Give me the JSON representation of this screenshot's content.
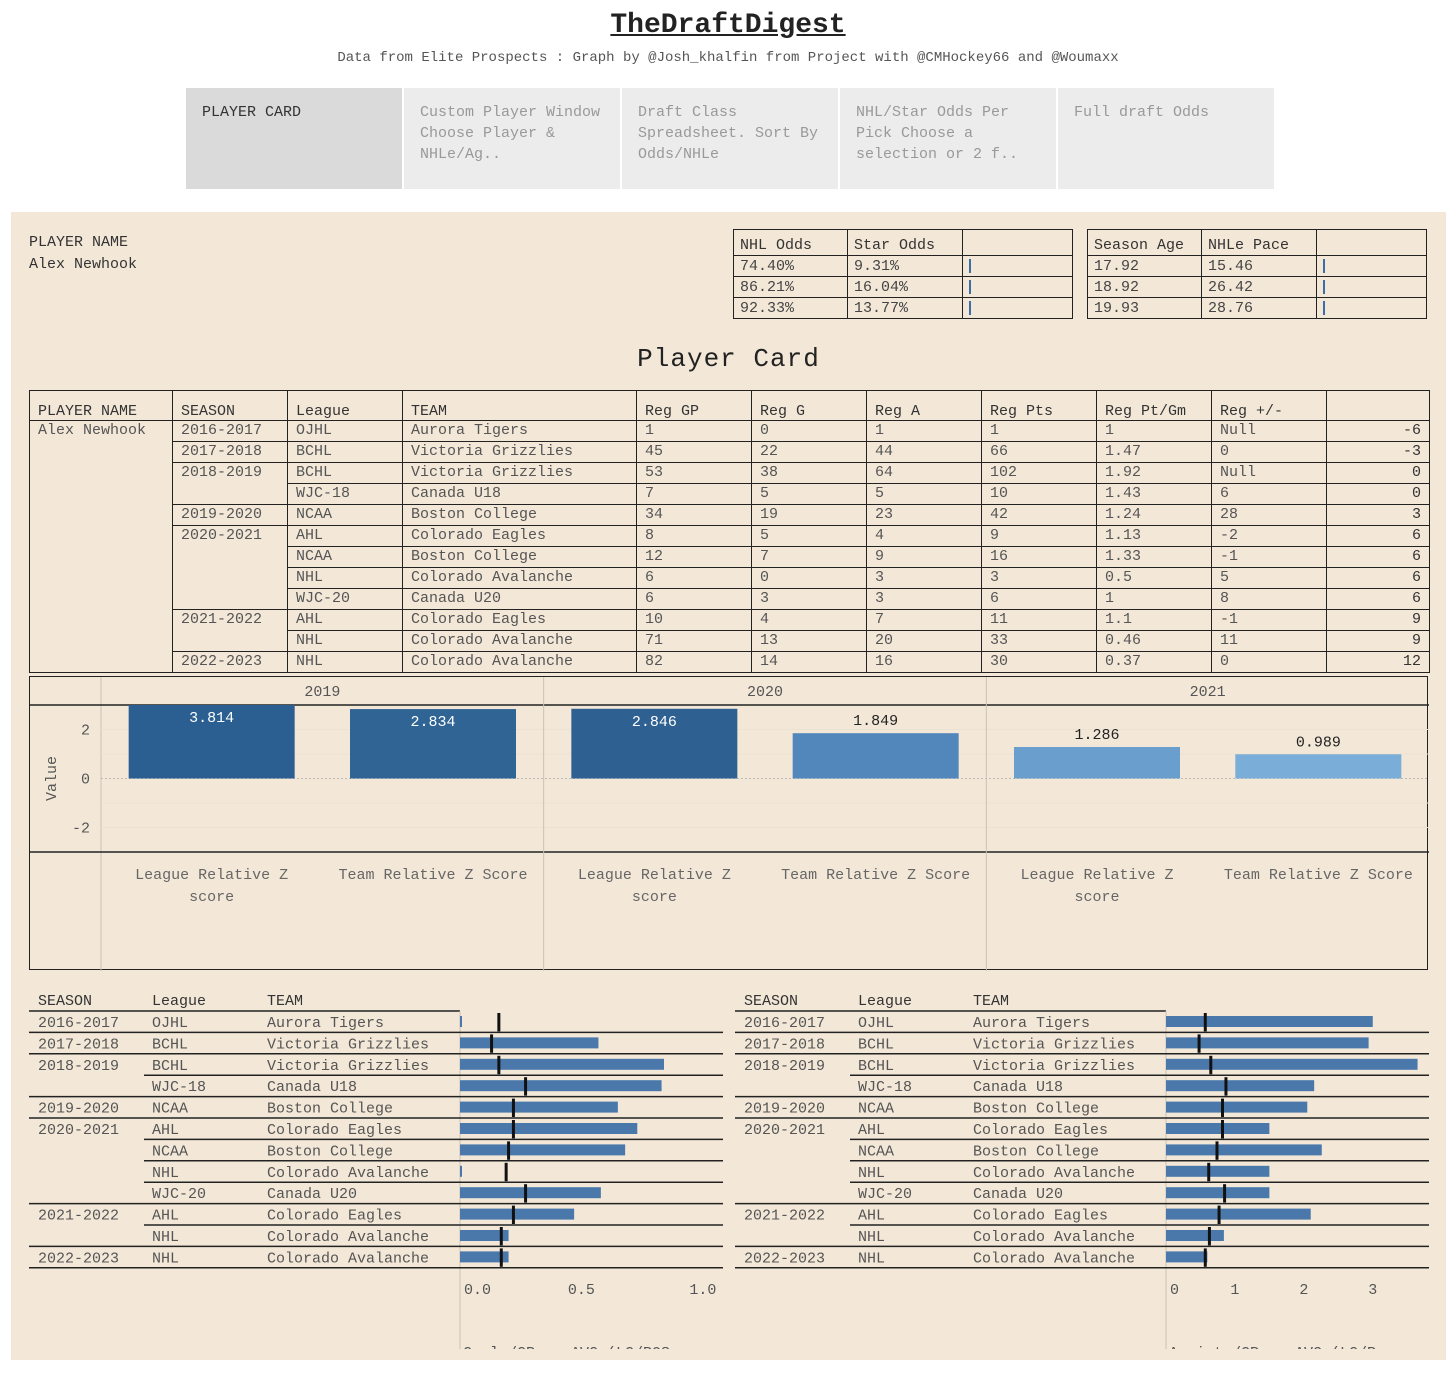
{
  "header": {
    "title": "TheDraftDigest",
    "subtitle": "Data from Elite Prospects : Graph by @Josh_khalfin from Project with @CMHockey66 and @Woumaxx"
  },
  "tabs": [
    {
      "label": "PLAYER CARD",
      "active": true
    },
    {
      "label": "Custom Player Window Choose Player & NHLe/Ag..",
      "active": false
    },
    {
      "label": "Draft Class Spreadsheet. Sort By Odds/NHLe",
      "active": false
    },
    {
      "label": "NHL/Star Odds Per Pick Choose a selection or 2 f..",
      "active": false
    },
    {
      "label": "Full draft Odds",
      "active": false
    }
  ],
  "player": {
    "label": "PLAYER NAME",
    "name": "Alex Newhook"
  },
  "odds_table": {
    "headers": [
      "NHL Odds",
      "Star Odds",
      ""
    ],
    "rows": [
      [
        "74.40%",
        "9.31%"
      ],
      [
        "86.21%",
        "16.04%"
      ],
      [
        "92.33%",
        "13.77%"
      ]
    ]
  },
  "age_table": {
    "headers": [
      "Season Age",
      "NHLe Pace",
      ""
    ],
    "rows": [
      [
        "17.92",
        "15.46"
      ],
      [
        "18.92",
        "26.42"
      ],
      [
        "19.93",
        "28.76"
      ]
    ]
  },
  "card_title": "Player Card",
  "main_table": {
    "headers": [
      "PLAYER NAME",
      "SEASON",
      "League",
      "TEAM",
      "Reg GP",
      "Reg G",
      "Reg A",
      "Reg Pts",
      "Reg Pt/Gm",
      "Reg +/-",
      ""
    ],
    "rows": [
      [
        "Alex Newhook",
        "2016-2017",
        "OJHL",
        "Aurora Tigers",
        "1",
        "0",
        "1",
        "1",
        "1",
        "Null",
        "-6"
      ],
      [
        "",
        "2017-2018",
        "BCHL",
        "Victoria Grizzlies",
        "45",
        "22",
        "44",
        "66",
        "1.47",
        "0",
        "-3"
      ],
      [
        "",
        "2018-2019",
        "BCHL",
        "Victoria Grizzlies",
        "53",
        "38",
        "64",
        "102",
        "1.92",
        "Null",
        "0"
      ],
      [
        "",
        "",
        "WJC-18",
        "Canada U18",
        "7",
        "5",
        "5",
        "10",
        "1.43",
        "6",
        "0"
      ],
      [
        "",
        "2019-2020",
        "NCAA",
        "Boston College",
        "34",
        "19",
        "23",
        "42",
        "1.24",
        "28",
        "3"
      ],
      [
        "",
        "2020-2021",
        "AHL",
        "Colorado Eagles",
        "8",
        "5",
        "4",
        "9",
        "1.13",
        "-2",
        "6"
      ],
      [
        "",
        "",
        "NCAA",
        "Boston College",
        "12",
        "7",
        "9",
        "16",
        "1.33",
        "-1",
        "6"
      ],
      [
        "",
        "",
        "NHL",
        "Colorado Avalanche",
        "6",
        "0",
        "3",
        "3",
        "0.5",
        "5",
        "6"
      ],
      [
        "",
        "",
        "WJC-20",
        "Canada U20",
        "6",
        "3",
        "3",
        "6",
        "1",
        "8",
        "6"
      ],
      [
        "",
        "2021-2022",
        "AHL",
        "Colorado Eagles",
        "10",
        "4",
        "7",
        "11",
        "1.1",
        "-1",
        "9"
      ],
      [
        "",
        "",
        "NHL",
        "Colorado Avalanche",
        "71",
        "13",
        "20",
        "33",
        "0.46",
        "11",
        "9"
      ],
      [
        "",
        "2022-2023",
        "NHL",
        "Colorado Avalanche",
        "82",
        "14",
        "16",
        "30",
        "0.37",
        "0",
        "12"
      ]
    ]
  },
  "chart_data": [
    {
      "type": "bar",
      "ylabel": "Value",
      "ylim": [
        -3,
        3
      ],
      "yticks": [
        "2",
        "0",
        "-2"
      ],
      "panels": [
        "2019",
        "2020",
        "2021"
      ],
      "categories": [
        "League Relative Z score",
        "Team Relative Z Score"
      ],
      "values": [
        [
          3.814,
          2.834
        ],
        [
          2.846,
          1.849
        ],
        [
          1.286,
          0.989
        ]
      ],
      "labels": [
        [
          "3.814",
          "2.834"
        ],
        [
          "2.846",
          "1.849"
        ],
        [
          "1.286",
          "0.989"
        ]
      ],
      "colors": [
        [
          "#2c5f91",
          "#2f6494"
        ],
        [
          "#2e6192",
          "#5187bb"
        ],
        [
          "#6a9fcd",
          "#7aaed8"
        ]
      ]
    },
    {
      "type": "bar",
      "xlabel": "Goals/GP vs AVG (LG/POS..",
      "xlim": [
        0,
        1.05
      ],
      "xticks": [
        "0.0",
        "0.5",
        "1.0"
      ],
      "values": [
        0.0,
        0.57,
        0.84,
        0.83,
        0.65,
        0.73,
        0.68,
        0.0,
        0.58,
        0.47,
        0.2,
        0.2
      ],
      "reference": [
        0.16,
        0.13,
        0.16,
        0.27,
        0.22,
        0.22,
        0.2,
        0.19,
        0.27,
        0.22,
        0.17,
        0.17
      ]
    },
    {
      "type": "bar",
      "xlabel": "Assists/GP vs AVG (LG/P..",
      "xlim": [
        0,
        3.7
      ],
      "xticks": [
        "0",
        "1",
        "2",
        "3"
      ],
      "values": [
        3.0,
        2.94,
        3.65,
        2.15,
        2.05,
        1.5,
        2.26,
        1.5,
        1.5,
        2.1,
        0.84,
        0.6
      ],
      "reference": [
        0.57,
        0.48,
        0.65,
        0.87,
        0.82,
        0.82,
        0.74,
        0.62,
        0.85,
        0.77,
        0.63,
        0.57
      ]
    }
  ],
  "bar_rows": {
    "headers": [
      "SEASON",
      "League",
      "TEAM"
    ],
    "rows": [
      [
        "2016-2017",
        "OJHL",
        "Aurora Tigers"
      ],
      [
        "2017-2018",
        "BCHL",
        "Victoria Grizzlies"
      ],
      [
        "2018-2019",
        "BCHL",
        "Victoria Grizzlies"
      ],
      [
        "",
        "WJC-18",
        "Canada U18"
      ],
      [
        "2019-2020",
        "NCAA",
        "Boston College"
      ],
      [
        "2020-2021",
        "AHL",
        "Colorado Eagles"
      ],
      [
        "",
        "NCAA",
        "Boston College"
      ],
      [
        "",
        "NHL",
        "Colorado Avalanche"
      ],
      [
        "",
        "WJC-20",
        "Canada U20"
      ],
      [
        "2021-2022",
        "AHL",
        "Colorado Eagles"
      ],
      [
        "",
        "NHL",
        "Colorado Avalanche"
      ],
      [
        "2022-2023",
        "NHL",
        "Colorado Avalanche"
      ]
    ]
  }
}
